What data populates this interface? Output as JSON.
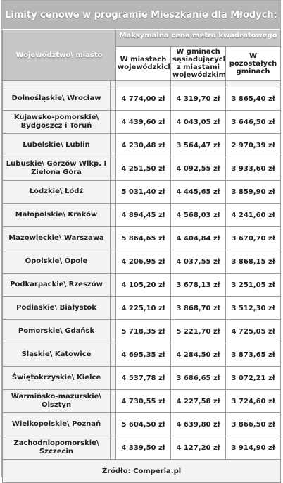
{
  "title": "Limity cenowe w programie Mieszkanie dla Młodych:",
  "headers": {
    "region": "Województwo\\ miasto",
    "max_price": "Maksymalna cena metra kwadratowego",
    "col1": "W miastach wojewódzkich",
    "col2": "W gminach sąsiadujących z miastami wojewódzkimi",
    "col3": "W pozostałych gminach"
  },
  "rows": [
    {
      "region": "Dolnośląskie\\ Wrocław",
      "c1": "4 774,00 zł",
      "c2": "4 319,70 zł",
      "c3": "3 865,40 zł"
    },
    {
      "region": "Kujawsko-pomorskie\\ Bydgoszcz i Toruń",
      "c1": "4 439,60 zł",
      "c2": "4 043,05 zł",
      "c3": "3 646,50 zł"
    },
    {
      "region": "Lubelskie\\ Lublin",
      "c1": "4 230,48 zł",
      "c2": "3 564,47 zł",
      "c3": "2 970,39 zł"
    },
    {
      "region": "Lubuskie\\ Gorzów Wlkp. I Zielona Góra",
      "c1": "4 251,50 zł",
      "c2": "4 092,55 zł",
      "c3": "3 933,60 zł"
    },
    {
      "region": "Łódzkie\\ Łódź",
      "c1": "5 031,40 zł",
      "c2": "4 445,65 zł",
      "c3": "3 859,90 zł"
    },
    {
      "region": "Małopolskie\\ Kraków",
      "c1": "4 894,45 zł",
      "c2": "4 568,03 zł",
      "c3": "4 241,60 zł"
    },
    {
      "region": "Mazowieckie\\ Warszawa",
      "c1": "5 864,65 zł",
      "c2": "4 404,84 zł",
      "c3": "3 670,70 zł"
    },
    {
      "region": "Opolskie\\ Opole",
      "c1": "4 206,95 zł",
      "c2": "4 037,55 zł",
      "c3": "3 868,15 zł"
    },
    {
      "region": "Podkarpackie\\ Rzeszów",
      "c1": "4 105,20 zł",
      "c2": "3 678,13 zł",
      "c3": "3 251,05 zł"
    },
    {
      "region": "Podlaskie\\ Białystok",
      "c1": "4 225,10 zł",
      "c2": "3 868,70 zł",
      "c3": "3 512,30 zł"
    },
    {
      "region": "Pomorskie\\ Gdańsk",
      "c1": "5 718,35 zł",
      "c2": "5 221,70 zł",
      "c3": "4 725,05 zł"
    },
    {
      "region": "Śląskie\\ Katowice",
      "c1": "4 695,35 zł",
      "c2": "4 284,50 zł",
      "c3": "3 873,65 zł"
    },
    {
      "region": "Świętokrzyskie\\ Kielce",
      "c1": "4 537,78 zł",
      "c2": "3 686,65 zł",
      "c3": "3 072,21 zł"
    },
    {
      "region": "Warmińsko-mazurskie\\ Olsztyn",
      "c1": "4 730,55 zł",
      "c2": "4 227,58 zł",
      "c3": "3 724,60 zł"
    },
    {
      "region": "Wielkopolskie\\ Poznań",
      "c1": "5 604,50 zł",
      "c2": "4 639,80 zł",
      "c3": "3 866,50 zł"
    },
    {
      "region": "Zachodniopomorskie\\ Szczecin",
      "c1": "4 339,50 zł",
      "c2": "4 127,20 zł",
      "c3": "3 914,90 zł"
    }
  ],
  "source": "Źródło: Comperia.pl"
}
